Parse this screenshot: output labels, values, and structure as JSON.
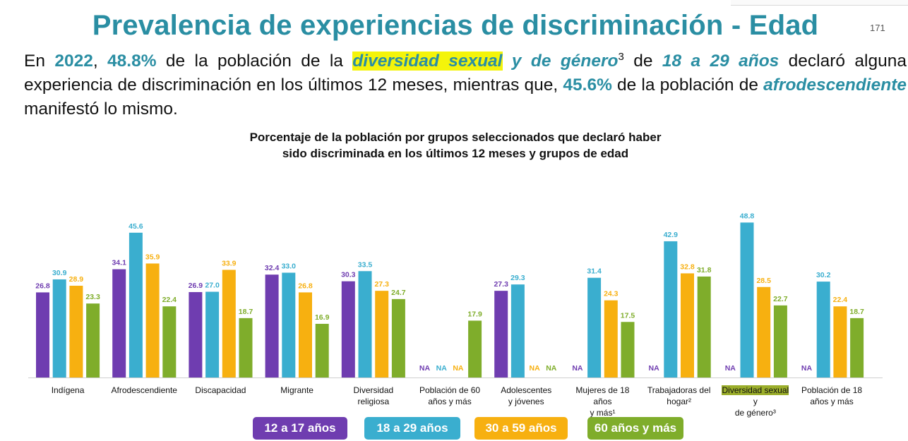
{
  "page": {
    "title": "Prevalencia de experiencias de discriminación - Edad",
    "page_number": "171"
  },
  "intro": {
    "t1": "En ",
    "year": "2022",
    "t2": ", ",
    "pct1": "48.8%",
    "t3": " de la población de la ",
    "group1a": "diversidad sexual",
    "group1b": " y de género",
    "sup1": "3",
    "t4": " de ",
    "age": "18 a 29 años",
    "t5": " declaró alguna experiencia de discriminación en los últimos 12 meses, mientras que, ",
    "pct2": "45.6%",
    "t6": " de la población de ",
    "group2": "afrodescendiente",
    "t7": " manifestó lo mismo."
  },
  "colors": {
    "title": "#2a8ea3",
    "s1": "#6f3db0",
    "s2": "#3aaecf",
    "s3": "#f7b010",
    "s4": "#7fad2b"
  },
  "chart_data": {
    "type": "bar",
    "title": "Porcentaje de la población por grupos seleccionados que declaró haber sido discriminada en los últimos 12 meses y grupos de edad",
    "title_line1": "Porcentaje de la población por grupos seleccionados que declaró haber",
    "title_line2": "sido discriminada en los últimos 12 meses y grupos de edad",
    "categories": [
      "Indígena",
      "Afrodescendiente",
      "Discapacidad",
      "Migrante",
      "Diversidad religiosa",
      "Población de 60 años y más",
      "Adolescentes y jóvenes",
      "Mujeres de 18 años y más¹",
      "Trabajadoras del hogar²",
      "Diversidad sexual y de género³",
      "Población de 18 años y más"
    ],
    "category_lines": [
      [
        "Indígena"
      ],
      [
        "Afrodescendiente"
      ],
      [
        "Discapacidad"
      ],
      [
        "Migrante"
      ],
      [
        "Diversidad",
        "religiosa"
      ],
      [
        "Población de 60",
        "años y más"
      ],
      [
        "Adolescentes",
        "y jóvenes"
      ],
      [
        "Mujeres de 18 años",
        "y más¹"
      ],
      [
        "Trabajadoras del",
        "hogar²"
      ],
      [
        "Diversidad sexual y",
        "de género³"
      ],
      [
        "Población de 18",
        "años y más"
      ]
    ],
    "na_label": "NA",
    "series": [
      {
        "name": "12 a 17 años",
        "values": [
          26.8,
          34.1,
          26.9,
          32.4,
          30.3,
          null,
          27.3,
          null,
          null,
          null,
          null
        ]
      },
      {
        "name": "18 a 29 años",
        "values": [
          30.9,
          45.6,
          27.0,
          33.0,
          33.5,
          null,
          29.3,
          31.4,
          42.9,
          48.8,
          30.2
        ]
      },
      {
        "name": "30 a 59 años",
        "values": [
          28.9,
          35.9,
          33.9,
          26.8,
          27.3,
          null,
          null,
          24.3,
          32.8,
          28.5,
          22.4
        ]
      },
      {
        "name": "60 años y más",
        "values": [
          23.3,
          22.4,
          18.7,
          16.9,
          24.7,
          17.9,
          null,
          17.5,
          31.8,
          22.7,
          18.7
        ]
      }
    ],
    "ylim": [
      0,
      50
    ],
    "grid": false,
    "legend": "bottom"
  }
}
